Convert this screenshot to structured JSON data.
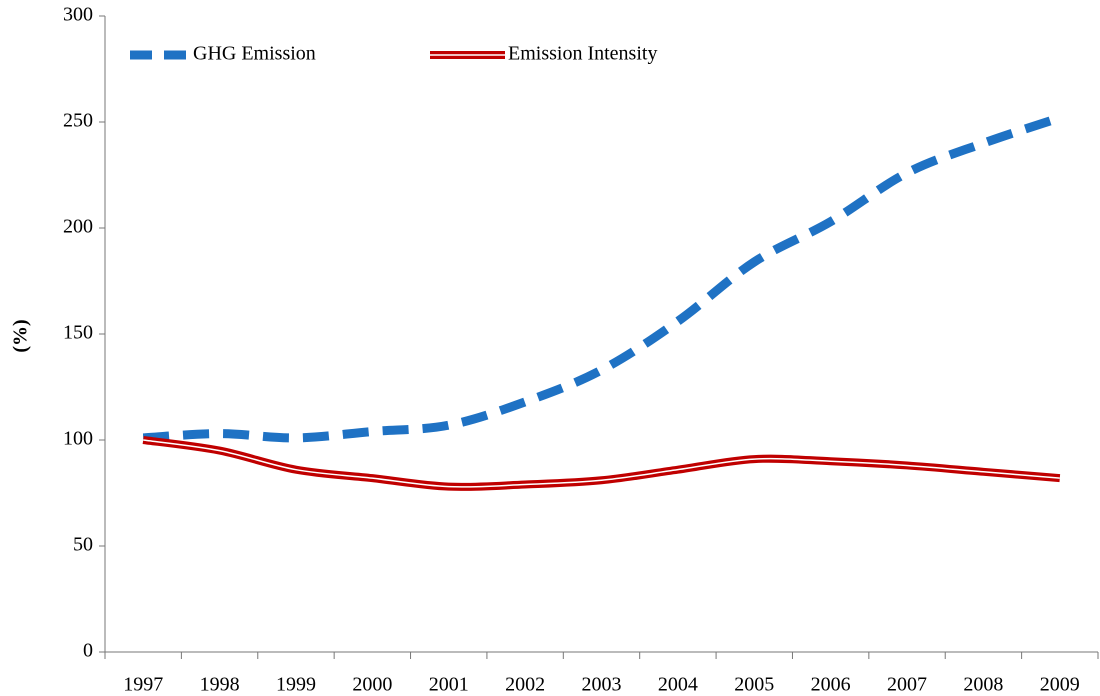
{
  "chart_data": {
    "type": "line",
    "y_label": "(%)",
    "categories": [
      "1997",
      "1998",
      "1999",
      "2000",
      "2001",
      "2002",
      "2003",
      "2004",
      "2005",
      "2006",
      "2007",
      "2008",
      "2009"
    ],
    "series": [
      {
        "name": "GHG Emission",
        "color": "#1f72c4",
        "line_style": "dashed",
        "values": [
          101,
          103,
          101,
          104,
          107,
          118,
          133,
          156,
          184,
          203,
          226,
          240,
          252
        ]
      },
      {
        "name": "Emission Intensity",
        "color": "#c00000",
        "line_style": "double",
        "values": [
          100,
          95,
          86,
          82,
          78,
          79,
          81,
          86,
          91,
          90,
          88,
          85,
          82
        ]
      }
    ],
    "ylim": [
      0,
      300
    ],
    "yticks": [
      0,
      50,
      100,
      150,
      200,
      250,
      300
    ],
    "grid": false
  }
}
